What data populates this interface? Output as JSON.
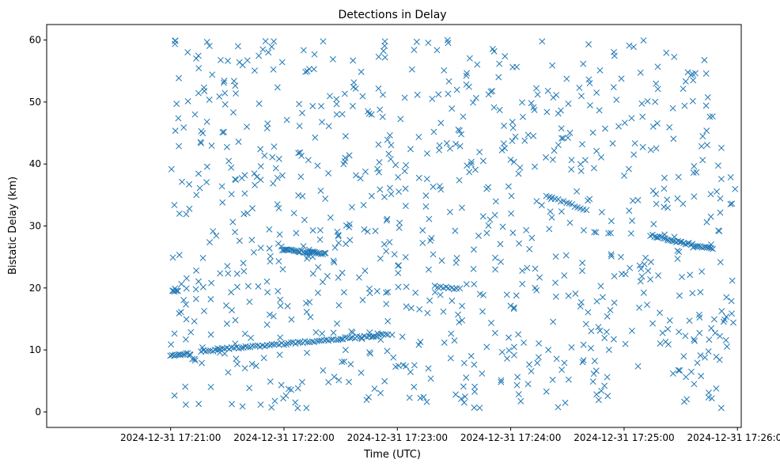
{
  "chart_data": {
    "type": "scatter",
    "title": "Detections in Delay",
    "xlabel": "Time (UTC)",
    "ylabel": "Bistatic Delay (km)",
    "x_unit": "seconds after 2024-12-31 17:20:00",
    "xlim": [
      -5.6,
      362
    ],
    "ylim": [
      -2.5,
      62.5
    ],
    "x_ticks": [
      60,
      120,
      180,
      240,
      300,
      360
    ],
    "x_tick_labels": [
      "2024-12-31 17:21:00",
      "2024-12-31 17:22:00",
      "2024-12-31 17:23:00",
      "2024-12-31 17:24:00",
      "2024-12-31 17:25:00",
      "2024-12-31 17:26:00"
    ],
    "y_ticks": [
      0,
      10,
      20,
      30,
      40,
      50,
      60
    ],
    "y_tick_labels": [
      "0",
      "10",
      "20",
      "30",
      "40",
      "50",
      "60"
    ],
    "marker": "x",
    "color": "#1f77b4",
    "grid": false,
    "legend": "none",
    "x_span": [
      60,
      359
    ],
    "random_point_count": 900,
    "random_seed": 7,
    "tracks": [
      {
        "x_start": 60,
        "x_end": 70,
        "y_start": 9.2,
        "y_end": 9.4,
        "count": 12
      },
      {
        "x_start": 76,
        "x_end": 175,
        "y_start": 9.8,
        "y_end": 12.5,
        "count": 80
      },
      {
        "x_start": 119,
        "x_end": 142,
        "y_start": 26.2,
        "y_end": 25.5,
        "count": 30
      },
      {
        "x_start": 61,
        "x_end": 64,
        "y_start": 19.4,
        "y_end": 19.6,
        "count": 6
      },
      {
        "x_start": 259,
        "x_end": 280,
        "y_start": 35.0,
        "y_end": 32.5,
        "count": 15
      },
      {
        "x_start": 200,
        "x_end": 213,
        "y_start": 20.2,
        "y_end": 19.8,
        "count": 10
      },
      {
        "x_start": 314,
        "x_end": 347,
        "y_start": 28.5,
        "y_end": 26.2,
        "count": 35
      }
    ]
  }
}
